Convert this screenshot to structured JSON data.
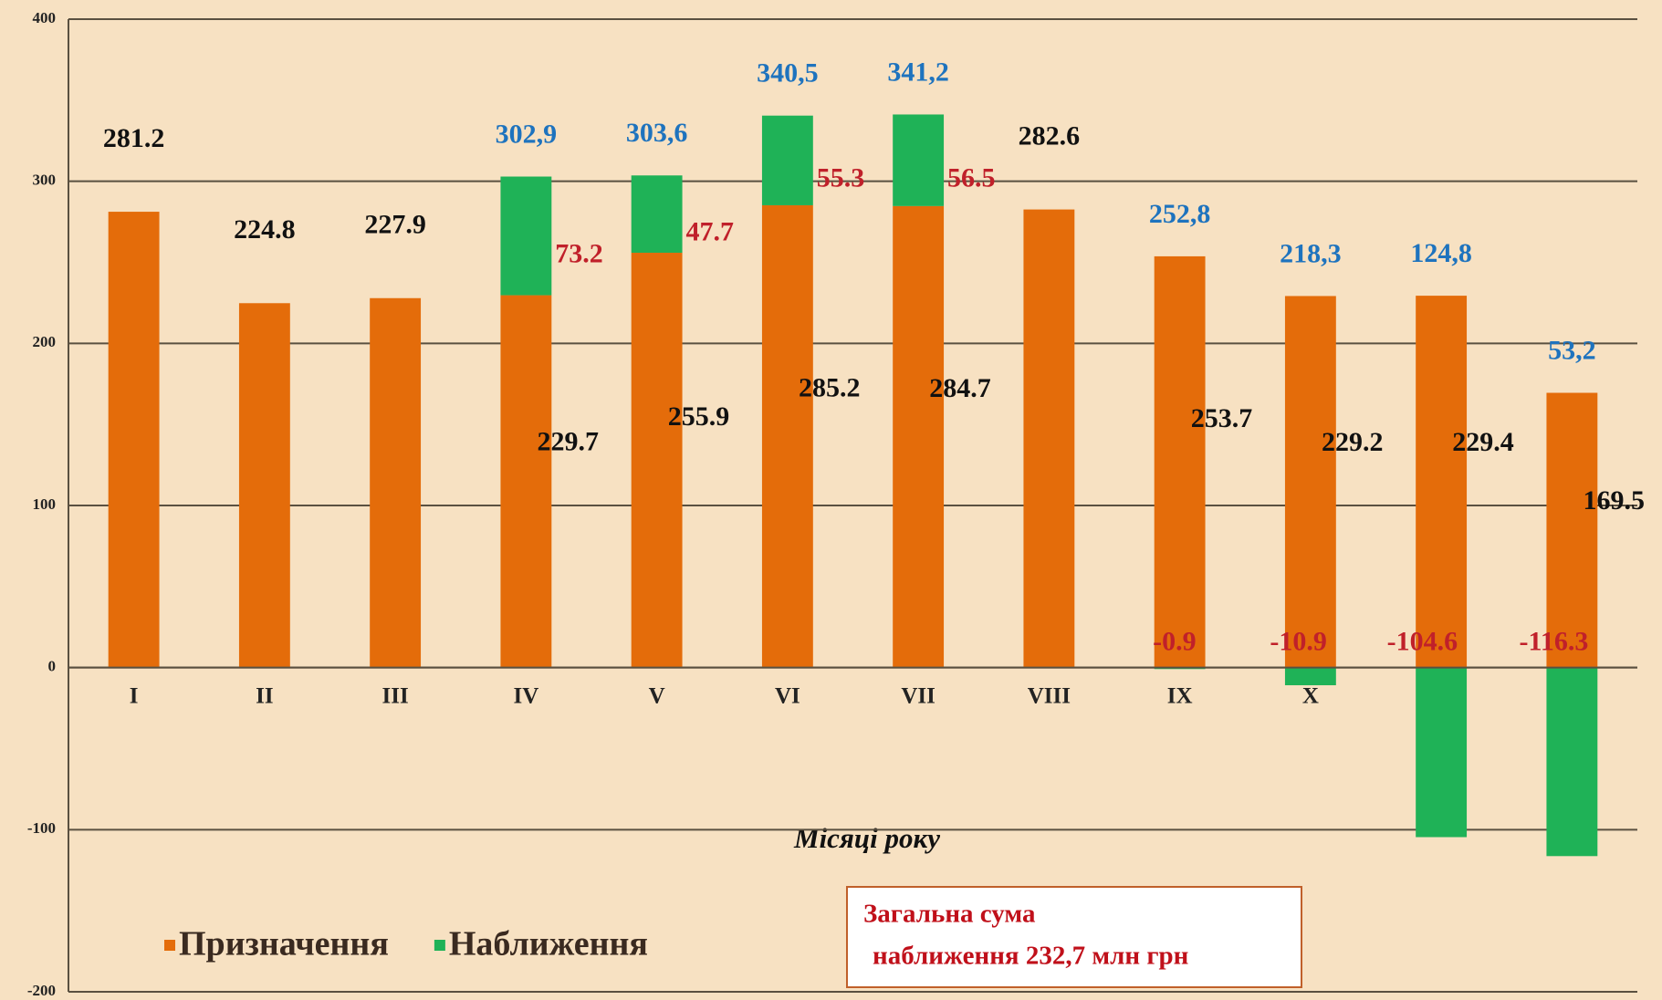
{
  "chart_data": {
    "type": "stacked_bar",
    "x_label": "Місяці року",
    "categories": [
      "I",
      "II",
      "III",
      "IV",
      "V",
      "VI",
      "VII",
      "VIII",
      "IX",
      "X",
      "XI",
      "XII"
    ],
    "series": [
      {
        "name": "Призначення",
        "color": "#e46c0a",
        "label_color": "#111111",
        "values": [
          281.2,
          224.8,
          227.9,
          229.7,
          255.9,
          285.2,
          284.7,
          282.6,
          253.7,
          229.2,
          229.4,
          169.5
        ]
      },
      {
        "name": "Наближення",
        "color": "#1fb257",
        "label_color": "#c0202a",
        "values": [
          null,
          null,
          null,
          73.2,
          47.7,
          55.3,
          56.5,
          null,
          -0.9,
          -10.9,
          -104.6,
          -116.3
        ]
      }
    ],
    "totals": {
      "color": "#1e73be",
      "values": [
        null,
        null,
        null,
        302.9,
        303.6,
        340.5,
        341.2,
        null,
        252.8,
        218.3,
        124.8,
        53.2
      ],
      "value_labels": [
        null,
        null,
        null,
        "302,9",
        "303,6",
        "340,5",
        "341,2",
        null,
        "252,8",
        "218,3",
        "124,8",
        "53,2"
      ]
    },
    "ylim": [
      -200,
      400
    ],
    "yticks": [
      -200,
      -100,
      0,
      100,
      200,
      300,
      400
    ],
    "grid": true,
    "legend": "bottom-left",
    "annotation": [
      "Загальна сума",
      "наближення 232,7 млн грн"
    ]
  }
}
